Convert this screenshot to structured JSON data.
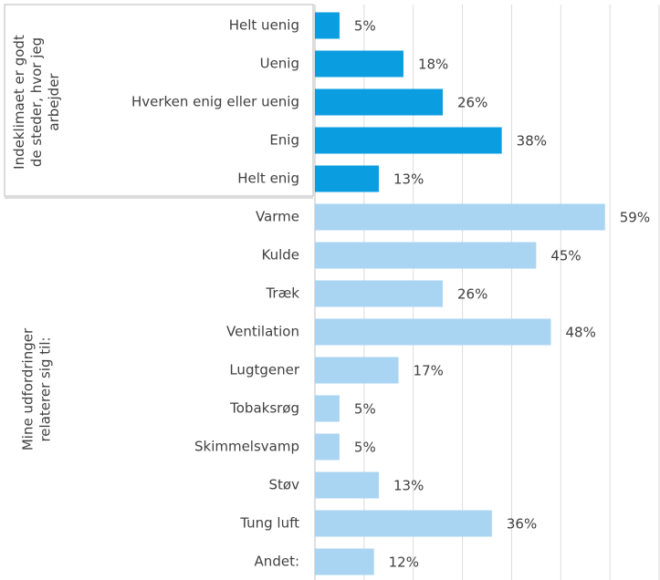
{
  "chart_data": {
    "type": "bar",
    "orientation": "horizontal",
    "xlim": [
      0,
      70
    ],
    "xticks": [
      0,
      10,
      20,
      30,
      40,
      50,
      60,
      70
    ],
    "grid": true,
    "groups": [
      {
        "name": "Indeklimaet er godt de steder, hvor jeg arbejder",
        "color": "#0a9de0",
        "categories": [
          "Helt uenig",
          "Uenig",
          "Hverken enig eller uenig",
          "Enig",
          "Helt enig"
        ],
        "values": [
          5,
          18,
          26,
          38,
          13
        ],
        "value_labels": [
          "5%",
          "18%",
          "26%",
          "38%",
          "13%"
        ]
      },
      {
        "name": "Mine udfordringer relaterer sig til:",
        "color": "#a9d5f3",
        "categories": [
          "Varme",
          "Kulde",
          "Træk",
          "Ventilation",
          "Lugtgener",
          "Tobaksrøg",
          "Skimmelsvamp",
          "Støv",
          "Tung luft",
          "Andet:"
        ],
        "values": [
          59,
          45,
          26,
          48,
          17,
          5,
          5,
          13,
          36,
          12
        ],
        "value_labels": [
          "59%",
          "45%",
          "26%",
          "48%",
          "17%",
          "5%",
          "5%",
          "13%",
          "36%",
          "12%"
        ]
      }
    ]
  }
}
